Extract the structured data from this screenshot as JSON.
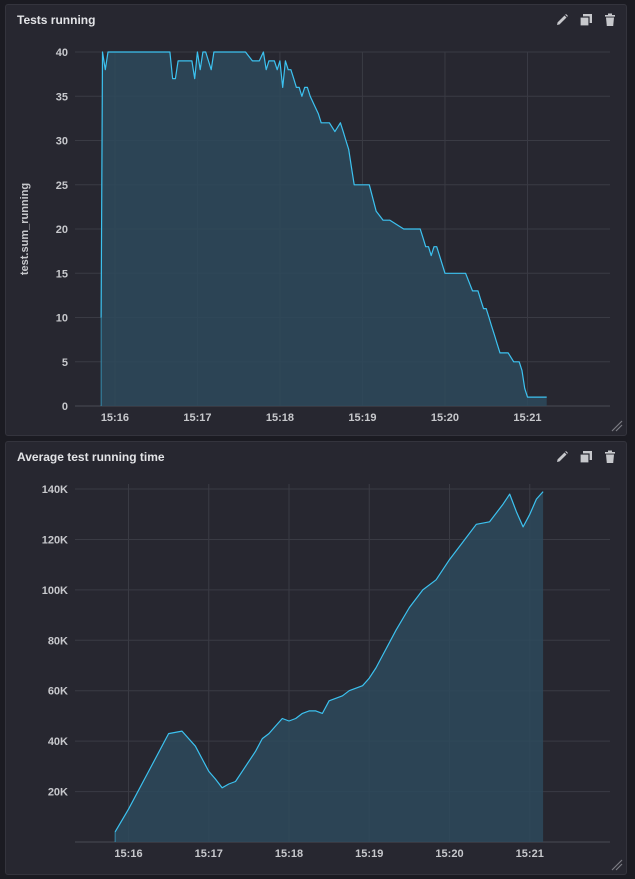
{
  "colors": {
    "line": "#3cc2f0",
    "fill": "#2e4a5c",
    "grid": "#3a3b44",
    "panel": "#272730"
  },
  "toolbar": {
    "edit_icon": "pencil-icon",
    "duplicate_icon": "copy-icon",
    "delete_icon": "trash-icon"
  },
  "panels": [
    {
      "title": "Tests running",
      "chart_data": {
        "type": "area",
        "title": "Tests running",
        "xlabel": "",
        "ylabel": "test.sum_running",
        "x_ticks": [
          "15:16",
          "15:17",
          "15:18",
          "15:19",
          "15:20",
          "15:21"
        ],
        "y_ticks": [
          "0",
          "5",
          "10",
          "15",
          "20",
          "25",
          "30",
          "35",
          "40"
        ],
        "ylim": [
          0,
          40
        ],
        "xlim": [
          "15:15:31",
          "15:22:00"
        ],
        "grid": true,
        "series": [
          {
            "x": [
              "15:15:50",
              "15:15:51",
              "15:15:53",
              "15:15:55",
              "15:15:57",
              "15:16:00",
              "15:16:20",
              "15:16:40",
              "15:16:42",
              "15:16:44",
              "15:16:46",
              "15:16:50",
              "15:16:56",
              "15:16:58",
              "15:17:00",
              "15:17:02",
              "15:17:04",
              "15:17:06",
              "15:17:10",
              "15:17:12",
              "15:17:15",
              "15:17:18",
              "15:17:22",
              "15:17:26",
              "15:17:30",
              "15:17:35",
              "15:17:40",
              "15:17:45",
              "15:17:48",
              "15:17:50",
              "15:17:52",
              "15:17:54",
              "15:17:56",
              "15:17:58",
              "15:18:00",
              "15:18:02",
              "15:18:04",
              "15:18:06",
              "15:18:08",
              "15:18:10",
              "15:18:12",
              "15:18:14",
              "15:18:16",
              "15:18:18",
              "15:18:20",
              "15:18:22",
              "15:18:25",
              "15:18:28",
              "15:18:30",
              "15:18:33",
              "15:18:36",
              "15:18:40",
              "15:18:44",
              "15:18:46",
              "15:18:48",
              "15:18:50",
              "15:18:52",
              "15:18:54",
              "15:18:56",
              "15:18:58",
              "15:19:00",
              "15:19:05",
              "15:19:10",
              "15:19:15",
              "15:19:20",
              "15:19:30",
              "15:19:35",
              "15:19:38",
              "15:19:40",
              "15:19:42",
              "15:19:44",
              "15:19:46",
              "15:19:48",
              "15:19:50",
              "15:19:52",
              "15:19:54",
              "15:19:56",
              "15:20:00",
              "15:20:10",
              "15:20:12",
              "15:20:15",
              "15:20:20",
              "15:20:24",
              "15:20:26",
              "15:20:28",
              "15:20:30",
              "15:20:32",
              "15:20:34",
              "15:20:36",
              "15:20:38",
              "15:20:40",
              "15:20:42",
              "15:20:46",
              "15:20:50",
              "15:20:52",
              "15:20:54",
              "15:20:56",
              "15:20:58",
              "15:21:00",
              "15:21:02",
              "15:21:05",
              "15:21:10",
              "15:21:14"
            ],
            "values": [
              10,
              40,
              38,
              40,
              40,
              40,
              40,
              40,
              37,
              37,
              39,
              39,
              39,
              37,
              40,
              38,
              40,
              40,
              38,
              40,
              40,
              40,
              40,
              40,
              40,
              40,
              39,
              39,
              40,
              38,
              39,
              39,
              39,
              38,
              39,
              36,
              39,
              38,
              38,
              37,
              36,
              36,
              35,
              36,
              36,
              35,
              34,
              33,
              32,
              32,
              32,
              31,
              32,
              31,
              30,
              29,
              27,
              25,
              25,
              25,
              25,
              25,
              22,
              21,
              21,
              20,
              20,
              20,
              20,
              20,
              19,
              18,
              18,
              17,
              18,
              18,
              17,
              15,
              15,
              15,
              15,
              13,
              13,
              12,
              11,
              11,
              10,
              9,
              8,
              7,
              6,
              6,
              6,
              5,
              5,
              5,
              4,
              2,
              1,
              1,
              1,
              1,
              1
            ]
          }
        ]
      }
    },
    {
      "title": "Average test running time",
      "chart_data": {
        "type": "area",
        "title": "Average test running time",
        "xlabel": "",
        "ylabel": "",
        "x_ticks": [
          "15:16",
          "15:17",
          "15:18",
          "15:19",
          "15:20",
          "15:21"
        ],
        "y_ticks": [
          "20K",
          "40K",
          "60K",
          "80K",
          "100K",
          "120K",
          "140K"
        ],
        "ylim": [
          0,
          142000
        ],
        "xlim": [
          "15:15:20",
          "15:22:00"
        ],
        "grid": true,
        "series": [
          {
            "x": [
              "15:15:50",
              "15:16:00",
              "15:16:15",
              "15:16:30",
              "15:16:40",
              "15:16:50",
              "15:17:00",
              "15:17:05",
              "15:17:10",
              "15:17:15",
              "15:17:20",
              "15:17:25",
              "15:17:30",
              "15:17:35",
              "15:17:40",
              "15:17:45",
              "15:17:50",
              "15:17:55",
              "15:18:00",
              "15:18:05",
              "15:18:10",
              "15:18:15",
              "15:18:20",
              "15:18:25",
              "15:18:30",
              "15:18:35",
              "15:18:40",
              "15:18:45",
              "15:18:50",
              "15:18:55",
              "15:19:00",
              "15:19:05",
              "15:19:10",
              "15:19:15",
              "15:19:20",
              "15:19:30",
              "15:19:40",
              "15:19:50",
              "15:20:00",
              "15:20:10",
              "15:20:20",
              "15:20:30",
              "15:20:40",
              "15:20:45",
              "15:20:50",
              "15:20:55",
              "15:21:00",
              "15:21:05",
              "15:21:10"
            ],
            "values": [
              4000,
              13000,
              28000,
              43000,
              44000,
              38000,
              28000,
              25000,
              21500,
              23000,
              24000,
              28000,
              32000,
              36000,
              41000,
              43000,
              46000,
              49000,
              48000,
              49000,
              51000,
              52000,
              52000,
              51000,
              56000,
              57000,
              58000,
              60000,
              61000,
              62000,
              65000,
              69000,
              74000,
              79000,
              84000,
              93000,
              100000,
              104000,
              112000,
              119000,
              126000,
              127000,
              134000,
              138000,
              131000,
              125000,
              130000,
              136000,
              139000
            ]
          }
        ]
      }
    }
  ]
}
